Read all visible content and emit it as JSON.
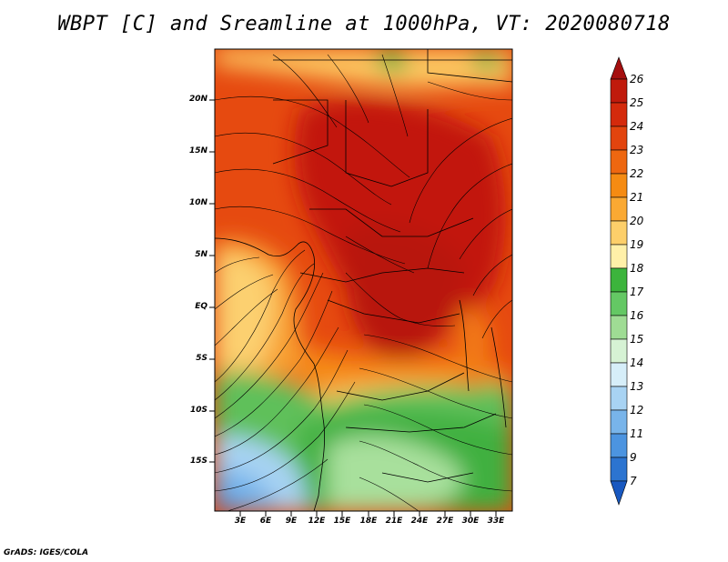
{
  "title": "WBPT [C] and Sreamline at 1000hPa, VT: 2020080718",
  "credit": "GrADS: IGES/COLA",
  "map": {
    "variable": "WBPT",
    "units": "C",
    "level": "1000hPa",
    "valid_time": "2020080718",
    "lat_labels": [
      "20N",
      "15N",
      "10N",
      "5N",
      "EQ",
      "5S",
      "10S",
      "15S"
    ],
    "lon_labels": [
      "3E",
      "6E",
      "9E",
      "12E",
      "15E",
      "18E",
      "21E",
      "24E",
      "27E",
      "30E",
      "33E"
    ]
  },
  "colorbar": {
    "labels": [
      "26",
      "25",
      "24",
      "23",
      "22",
      "21",
      "20",
      "19",
      "18",
      "17",
      "16",
      "15",
      "14",
      "13",
      "12",
      "11",
      "9",
      "7"
    ],
    "colors": [
      "#a50f0f",
      "#c01a0c",
      "#d42a0c",
      "#e2440e",
      "#ee6710",
      "#f58b12",
      "#faa933",
      "#fdcf6a",
      "#fff0a8",
      "#3cb43c",
      "#64c864",
      "#9fdc94",
      "#d6f2d4",
      "#d6eef9",
      "#a8d3f3",
      "#78b4ea",
      "#4c94e0",
      "#2c74d0",
      "#1858c0"
    ]
  }
}
